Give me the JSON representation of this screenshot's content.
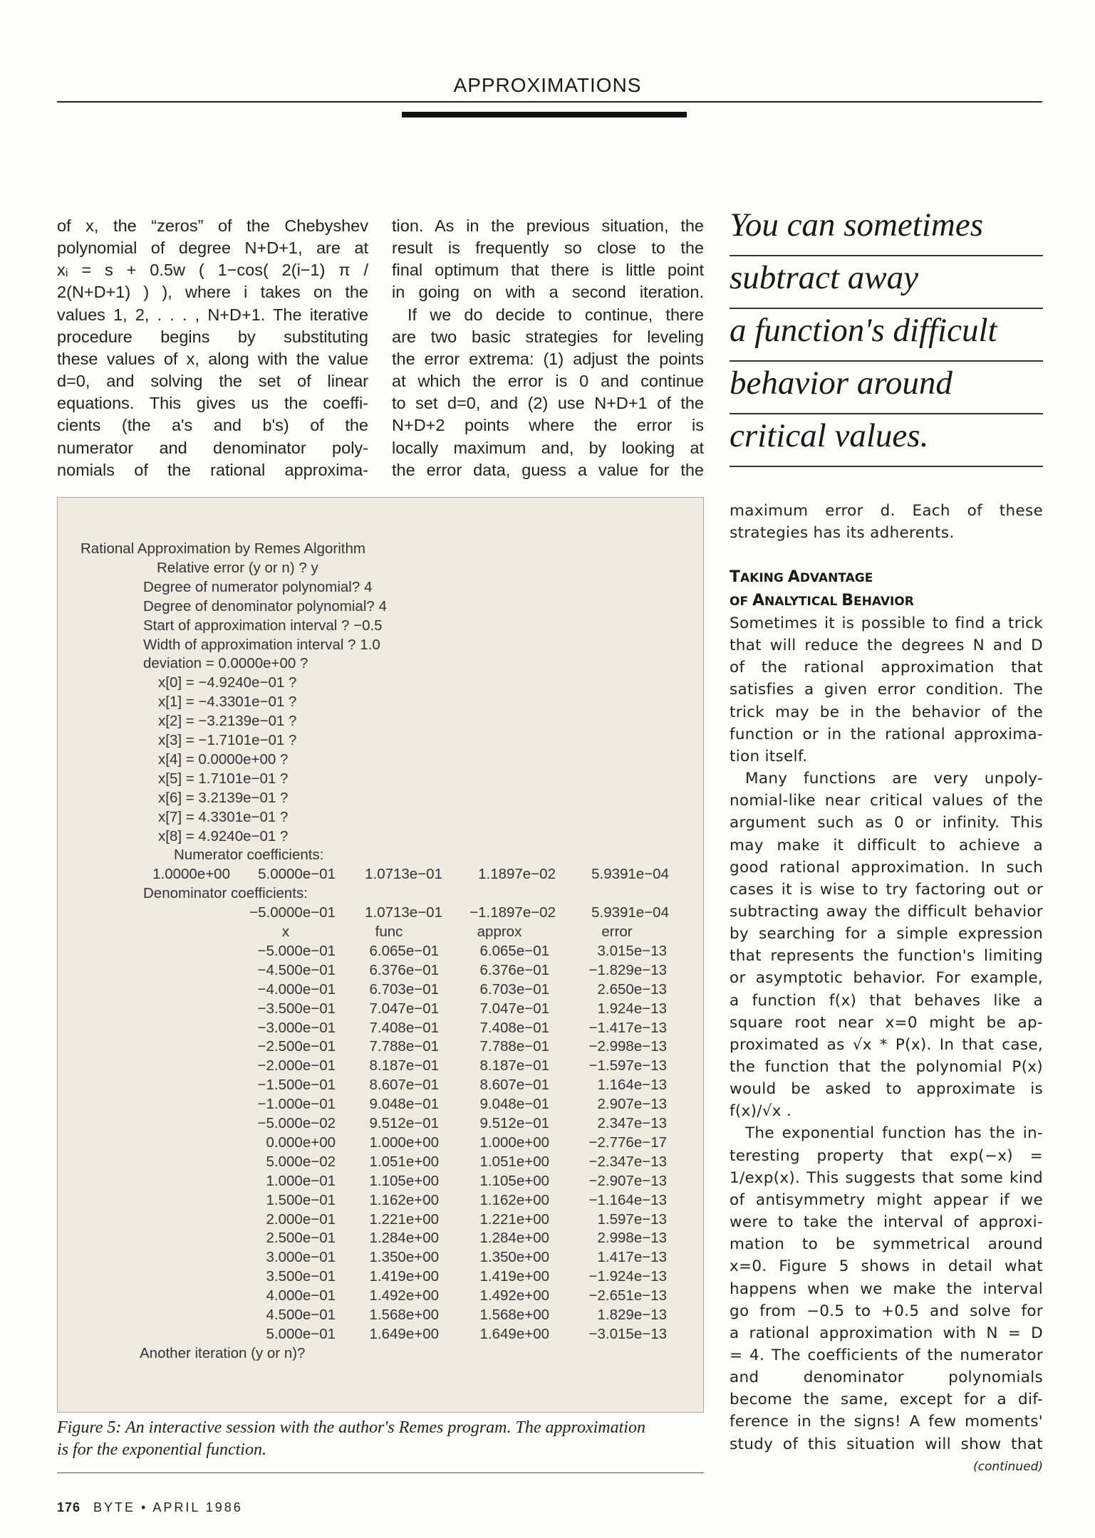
{
  "header": {
    "title": "APPROXIMATIONS"
  },
  "column1": [
    {
      "t": "of x, the “zeros” of the Chebyshev"
    },
    {
      "t": "polynomial of degree N+D+1, are at"
    },
    {
      "t": "xᵢ = s + 0.5w ( 1−cos( 2(i−1) π /"
    },
    {
      "t": "2(N+D+1) ) ), where i takes on the"
    },
    {
      "t": "values 1, 2, . . . , N+D+1. The iterative"
    },
    {
      "t": "procedure begins by substituting"
    },
    {
      "t": "these values of x, along with the value"
    },
    {
      "t": "d=0, and solving the set of linear"
    },
    {
      "t": "equations. This gives us the coeffi-"
    },
    {
      "t": "cients (the a's and b's) of the"
    },
    {
      "t": "numerator and denominator poly-"
    },
    {
      "t": "nomials of the rational approxima-"
    }
  ],
  "column2": [
    {
      "t": "tion. As in the previous situation, the"
    },
    {
      "t": "result is frequently so close to the"
    },
    {
      "t": "final optimum that there is little point"
    },
    {
      "t": "in going on with a second iteration."
    },
    {
      "t": "If we do decide to continue, there",
      "indent": true
    },
    {
      "t": "are two basic strategies for leveling"
    },
    {
      "t": "the error extrema: (1) adjust the points"
    },
    {
      "t": "at which the error is 0 and continue"
    },
    {
      "t": "to set d=0, and (2) use N+D+1 of the"
    },
    {
      "t": "N+D+2 points where the error is"
    },
    {
      "t": "locally maximum and, by looking at"
    },
    {
      "t": "the error data, guess a value for the"
    }
  ],
  "pull_quote": [
    "You can sometimes",
    "subtract away",
    "a function's difficult",
    "behavior around",
    "critical values."
  ],
  "column3_top": [
    {
      "t": "maximum error d. Each of these"
    },
    {
      "t": "strategies has its adherents.",
      "last": true
    }
  ],
  "subhead": {
    "line1_cap1": "T",
    "line1_rest1": "AKING ",
    "line1_cap2": "A",
    "line1_rest2": "DVANTAGE",
    "line2_cap1": "OF ",
    "line2_cap2": "A",
    "line2_rest2": "NALYTICAL ",
    "line2_cap3": "B",
    "line2_rest3": "EHAVIOR"
  },
  "column3": [
    {
      "t": "Sometimes it is possible to find a trick"
    },
    {
      "t": "that will reduce the degrees N and D"
    },
    {
      "t": "of the rational approximation that"
    },
    {
      "t": "satisfies a given error condition. The"
    },
    {
      "t": "trick may be in the behavior of the"
    },
    {
      "t": "function or in the rational approxima-"
    },
    {
      "t": "tion itself.",
      "last": true
    },
    {
      "t": "Many functions are very unpoly-",
      "indent": true
    },
    {
      "t": "nomial-like near critical values of the"
    },
    {
      "t": "argument such as 0 or infinity. This"
    },
    {
      "t": "may make it difficult to achieve a"
    },
    {
      "t": "good rational approximation. In such"
    },
    {
      "t": "cases it is wise to try factoring out or"
    },
    {
      "t": "subtracting away the difficult behavior"
    },
    {
      "t": "by searching for a simple expression"
    },
    {
      "t": "that represents the function's limiting"
    },
    {
      "t": "or asymptotic behavior. For example,"
    },
    {
      "t": "a function f(x) that behaves like a"
    },
    {
      "t": "square root near x=0 might be ap-"
    },
    {
      "t": "proximated as √x * P(x). In that case,"
    },
    {
      "t": "the function that the polynomial P(x)"
    },
    {
      "t": "would be asked to approximate is"
    },
    {
      "t": "f(x)/√x .",
      "last": true
    },
    {
      "t": "The exponential function has the in-",
      "indent": true
    },
    {
      "t": "teresting property that exp(−x) ="
    },
    {
      "t": "1/exp(x). This suggests that some kind"
    },
    {
      "t": "of antisymmetry might appear if we"
    },
    {
      "t": "were to take the interval of approxi-"
    },
    {
      "t": "mation to be symmetrical around"
    },
    {
      "t": "x=0. Figure 5 shows in detail what"
    },
    {
      "t": "happens when we make the interval"
    },
    {
      "t": "go from −0.5 to +0.5 and solve for"
    },
    {
      "t": "a rational approximation with N = D"
    },
    {
      "t": "= 4. The coefficients of the numerator"
    },
    {
      "t": "and denominator polynomials"
    },
    {
      "t": "become the same, except for a dif-"
    },
    {
      "t": "ference in the signs! A few moments'"
    },
    {
      "t": "study of this situation will show that"
    }
  ],
  "continued": "(continued)",
  "figure": {
    "session_prompts": [
      {
        "t": "Rational Approximation by Remes Algorithm",
        "lv": 0
      },
      {
        "t": "Relative error (y or n) ? y",
        "lv": 2
      },
      {
        "t": "Degree of numerator polynomial? 4",
        "lv": 1
      },
      {
        "t": "Degree of denominator polynomial? 4",
        "lv": 1
      },
      {
        "t": "Start of approximation interval ? −0.5",
        "lv": 1
      },
      {
        "t": "Width of approximation interval ? 1.0",
        "lv": 1
      },
      {
        "t": "deviation = 0.0000e+00 ?",
        "lv": 1
      },
      {
        "t": "x[0] = −4.9240e−01 ?",
        "lv": 3
      },
      {
        "t": "x[1] = −4.3301e−01 ?",
        "lv": 3
      },
      {
        "t": "x[2] = −3.2139e−01 ?",
        "lv": 3
      },
      {
        "t": "x[3] = −1.7101e−01 ?",
        "lv": 3
      },
      {
        "t": "x[4] = 0.0000e+00 ?",
        "lv": 3
      },
      {
        "t": "x[5] = 1.7101e−01 ?",
        "lv": 3
      },
      {
        "t": "x[6] = 3.2139e−01 ?",
        "lv": 3
      },
      {
        "t": "x[7] = 4.3301e−01 ?",
        "lv": 3
      },
      {
        "t": "x[8] = 4.9240e−01 ?",
        "lv": 3
      },
      {
        "t": "Numerator coefficients:",
        "lv": 4
      }
    ],
    "numerator_coefficients": [
      "1.0000e+00",
      "5.0000e−01",
      "1.0713e−01",
      "1.1897e−02",
      "5.9391e−04"
    ],
    "denominator_label": "Denominator coefficients:",
    "denominator_coefficients": [
      "",
      "−5.0000e−01",
      "1.0713e−01",
      "−1.1897e−02",
      "5.9391e−04"
    ],
    "table_headers": [
      "x",
      "func",
      "approx",
      "error"
    ],
    "table_rows": [
      [
        "−5.000e−01",
        "6.065e−01",
        "6.065e−01",
        "3.015e−13"
      ],
      [
        "−4.500e−01",
        "6.376e−01",
        "6.376e−01",
        "−1.829e−13"
      ],
      [
        "−4.000e−01",
        "6.703e−01",
        "6.703e−01",
        "2.650e−13"
      ],
      [
        "−3.500e−01",
        "7.047e−01",
        "7.047e−01",
        "1.924e−13"
      ],
      [
        "−3.000e−01",
        "7.408e−01",
        "7.408e−01",
        "−1.417e−13"
      ],
      [
        "−2.500e−01",
        "7.788e−01",
        "7.788e−01",
        "−2.998e−13"
      ],
      [
        "−2.000e−01",
        "8.187e−01",
        "8.187e−01",
        "−1.597e−13"
      ],
      [
        "−1.500e−01",
        "8.607e−01",
        "8.607e−01",
        "1.164e−13"
      ],
      [
        "−1.000e−01",
        "9.048e−01",
        "9.048e−01",
        "2.907e−13"
      ],
      [
        "−5.000e−02",
        "9.512e−01",
        "9.512e−01",
        "2.347e−13"
      ],
      [
        "0.000e+00",
        "1.000e+00",
        "1.000e+00",
        "−2.776e−17"
      ],
      [
        "5.000e−02",
        "1.051e+00",
        "1.051e+00",
        "−2.347e−13"
      ],
      [
        "1.000e−01",
        "1.105e+00",
        "1.105e+00",
        "−2.907e−13"
      ],
      [
        "1.500e−01",
        "1.162e+00",
        "1.162e+00",
        "−1.164e−13"
      ],
      [
        "2.000e−01",
        "1.221e+00",
        "1.221e+00",
        "1.597e−13"
      ],
      [
        "2.500e−01",
        "1.284e+00",
        "1.284e+00",
        "2.998e−13"
      ],
      [
        "3.000e−01",
        "1.350e+00",
        "1.350e+00",
        "1.417e−13"
      ],
      [
        "3.500e−01",
        "1.419e+00",
        "1.419e+00",
        "−1.924e−13"
      ],
      [
        "4.000e−01",
        "1.492e+00",
        "1.492e+00",
        "−2.651e−13"
      ],
      [
        "4.500e−01",
        "1.568e+00",
        "1.568e+00",
        "1.829e−13"
      ],
      [
        "5.000e−01",
        "1.649e+00",
        "1.649e+00",
        "−3.015e−13"
      ]
    ],
    "final_prompt": "Another iteration (y or n)?",
    "caption_line1": "Figure 5: An interactive session with the author's Remes program. The approximation",
    "caption_line2": "is for the exponential function."
  },
  "footer": {
    "page": "176",
    "publication": "BYTE • APRIL 1986"
  },
  "colors": {
    "figure_background": "#efebe1",
    "text": "#1e1e1e"
  }
}
